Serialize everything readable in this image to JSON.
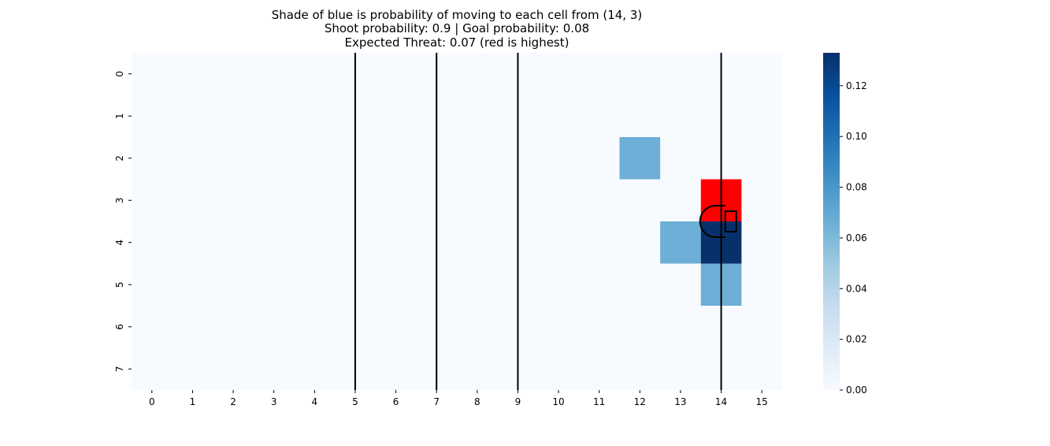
{
  "chart_data": {
    "type": "heatmap",
    "title": [
      "Shade of blue is probability of moving to each cell from (14, 3)",
      "Shoot probability: 0.9 | Goal probability: 0.08",
      "Expected Threat: 0.07 (red is highest)"
    ],
    "x_categories": [
      "0",
      "1",
      "2",
      "3",
      "4",
      "5",
      "6",
      "7",
      "8",
      "9",
      "10",
      "11",
      "12",
      "13",
      "14",
      "15"
    ],
    "y_categories": [
      "0",
      "1",
      "2",
      "3",
      "4",
      "5",
      "6",
      "7"
    ],
    "cells": [
      {
        "x": 12,
        "y": 2,
        "value": 0.066
      },
      {
        "x": 13,
        "y": 4,
        "value": 0.066
      },
      {
        "x": 14,
        "y": 4,
        "value": 0.133
      },
      {
        "x": 14,
        "y": 5,
        "value": 0.066
      }
    ],
    "highlight_cell": {
      "x": 14,
      "y": 3,
      "color": "#ff0000",
      "meaning": "highest expected threat"
    },
    "colorscale": {
      "name": "Blues",
      "min": 0.0,
      "max": 0.133,
      "stops": [
        "#f7fbff",
        "#deebf7",
        "#c6dbef",
        "#9ecae1",
        "#6baed6",
        "#4292c6",
        "#2171b5",
        "#08519c",
        "#08306b"
      ],
      "ticks": [
        "0.00",
        "0.02",
        "0.04",
        "0.06",
        "0.08",
        "0.10",
        "0.12"
      ]
    },
    "pitch_vertical_lines_after_column": [
      5,
      7,
      9,
      14
    ],
    "line_color": "#000000"
  }
}
